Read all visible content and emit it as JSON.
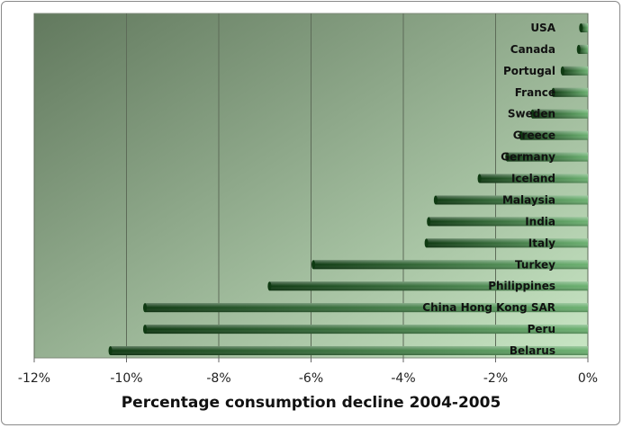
{
  "chart_data": {
    "type": "bar",
    "orientation": "horizontal",
    "title": "",
    "xlabel": "Percentage consumption decline 2004-2005",
    "ylabel": "",
    "xlim": [
      -12,
      0
    ],
    "x_ticks": [
      "-12%",
      "-10%",
      "-8%",
      "-6%",
      "-4%",
      "-2%",
      "0%"
    ],
    "x_tick_values": [
      -12,
      -10,
      -8,
      -6,
      -4,
      -2,
      0
    ],
    "grid": "vertical",
    "legend": "none",
    "categories": [
      "USA",
      "Canada",
      "Portugal",
      "France",
      "Sweden",
      "Greece",
      "Germany",
      "Iceland",
      "Malaysia",
      "India",
      "Italy",
      "Turkey",
      "Philippines",
      "China Hong Kong SAR",
      "Peru",
      "Belarus"
    ],
    "values": [
      -0.15,
      -0.2,
      -0.55,
      -0.75,
      -1.2,
      -1.45,
      -1.75,
      -2.35,
      -3.3,
      -3.45,
      -3.5,
      -5.95,
      -6.9,
      -9.6,
      -9.6,
      -10.35
    ],
    "colors": {
      "bar_dark": "#0f3a12",
      "bar_light": "#6bb070",
      "plot_dark": "#62795e",
      "plot_light": "#c9e7c5",
      "grid": "#5d6b58"
    }
  }
}
